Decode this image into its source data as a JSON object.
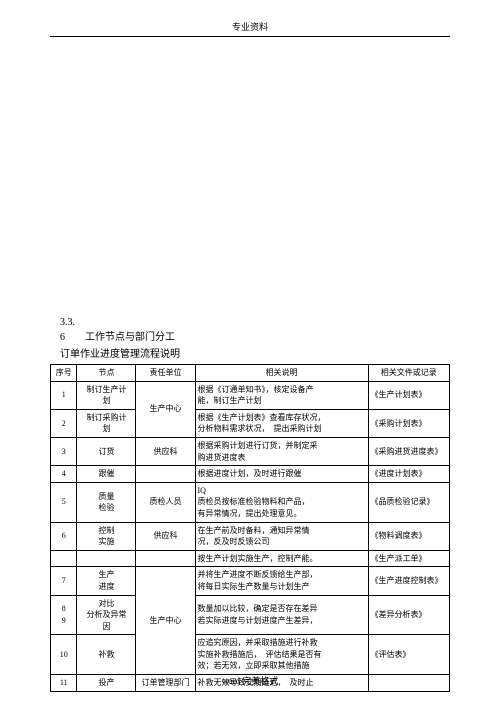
{
  "header": "专业资料",
  "footer": "word 完美格式",
  "section": {
    "num_line1": "3.3.",
    "num_title": "6　　工作节点与部门分工",
    "subtitle": "订单作业进度管理流程说明"
  },
  "cols": {
    "c0": "序号",
    "c1": "节点",
    "c2": "责任单位",
    "c3": "相关说明",
    "c4": "相关文件或记录"
  },
  "colw": {
    "c0": 26,
    "c1": 58,
    "c2": 58,
    "c3": 170,
    "c4": 80
  },
  "rows": [
    {
      "n": "1",
      "node": "制订生产计\n划",
      "dept": "生产中心",
      "desc": "根据《订通单知书》，核定设备产\n能，制订生产计划",
      "doc": "《生产计划表》",
      "deptRowspan": 2
    },
    {
      "n": "2",
      "node": "制订采购计\n划",
      "desc": "根据《生产计划表》查看库存状况，\n分析物料需求状况，　提出采购计划",
      "doc": "《采购计划表》"
    },
    {
      "n": "3",
      "node": "订货",
      "dept": "供应科",
      "desc": "根据采购计划进行订货，并制定采\n购进货进度表",
      "doc": "《采购进货进度表》"
    },
    {
      "n": "4",
      "node": "跟催",
      "dept": "",
      "desc": "根据进度计划，及时进行跟催",
      "doc": "《进度计划表》"
    },
    {
      "n": "5",
      "node": "质量\n检验",
      "dept": "质检人员",
      "desc": "IQ\n质检员按标准检验物料和产品，\n有异常情况，提出处理意见。",
      "doc": "《品质检验记录》",
      "deptRowspan": 2
    },
    {
      "n": "6",
      "node": "控制\n实施",
      "desc": "在生产前及时备料，通知异常情\n况，反及时反馈公司",
      "doc": "《物料调度表》",
      "deptSplit": "供应科",
      "extra": "按生产计划实施生产，控制产能。",
      "extraDoc": "《生产派工单》"
    },
    {
      "n": "7",
      "node": "生产\n进度",
      "dept": "生产中心",
      "desc": "并将生产进度不断反馈给生产部，\n将每日实际生产数量与计划生产",
      "doc": "《生产进度控制表》",
      "deptRowspan": 3
    },
    {
      "n": "8\n9",
      "node": "对比\n分析及异常\n因",
      "desc": "数量加以比较，确定是否存在差异\n若实际进度与计划进度产生差异，",
      "doc": "《差异分析表》"
    },
    {
      "n": "10",
      "node": "补救",
      "desc": "应追究原因，并采取措施进行补救\n实施补救措施后，　评估结果是否有\n效；若无效，立即采取其他措施",
      "doc": "《评估表》"
    },
    {
      "n": "11",
      "node": "投产",
      "dept": "订单管理部门",
      "desc": "补救无效导致交期延迟，　及时止",
      "doc": "",
      "truncated": true
    }
  ]
}
